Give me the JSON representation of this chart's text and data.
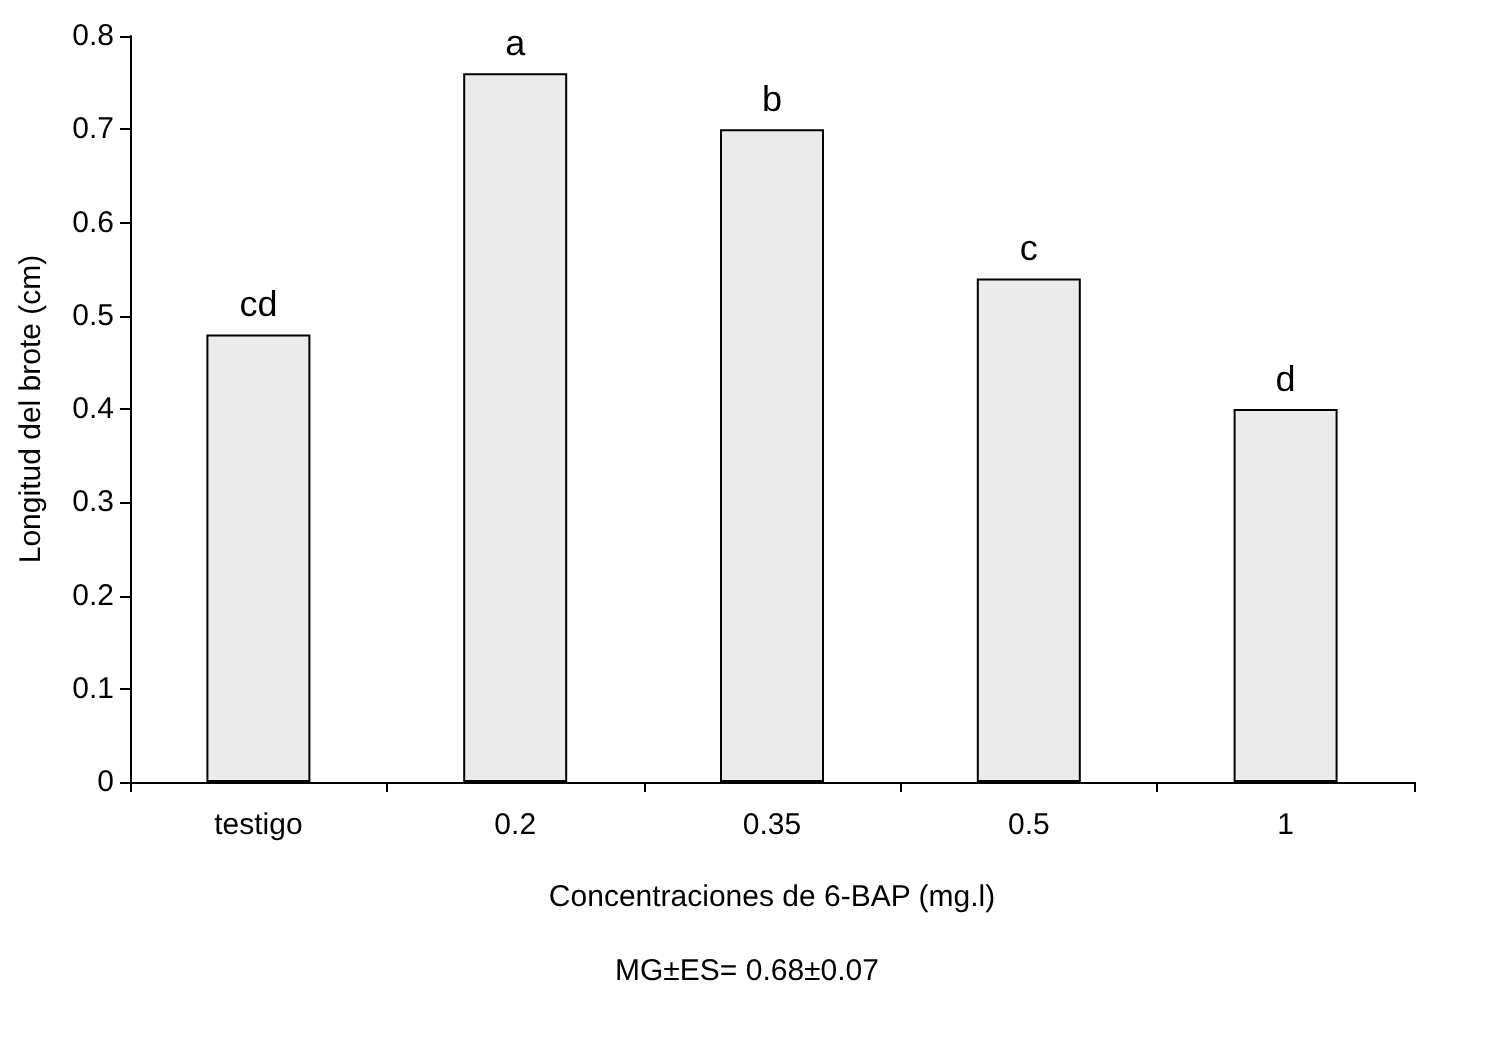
{
  "chart_data": {
    "type": "bar",
    "xlabel": "Concentraciones de 6-BAP (mg.l)",
    "ylabel": "Longitud del brote (cm)",
    "categories": [
      "testigo",
      "0.2",
      "0.35",
      "0.5",
      "1"
    ],
    "values": [
      0.48,
      0.76,
      0.7,
      0.54,
      0.4
    ],
    "color": "#ebebeb",
    "ylim": [
      0,
      0.8
    ],
    "yticks": [
      0,
      0.1,
      0.2,
      0.3,
      0.4,
      0.5,
      0.6,
      0.7,
      0.8
    ],
    "grid": false,
    "annotations": [
      {
        "text": "cd",
        "x": "testigo",
        "y": 0.48
      },
      {
        "text": "a",
        "x": "0.2",
        "y": 0.76
      },
      {
        "text": "b",
        "x": "0.35",
        "y": 0.7
      },
      {
        "text": "c",
        "x": "0.5",
        "y": 0.54
      },
      {
        "text": "d",
        "x": "1",
        "y": 0.4
      },
      "MG±ES= 0.68±0.07"
    ]
  }
}
